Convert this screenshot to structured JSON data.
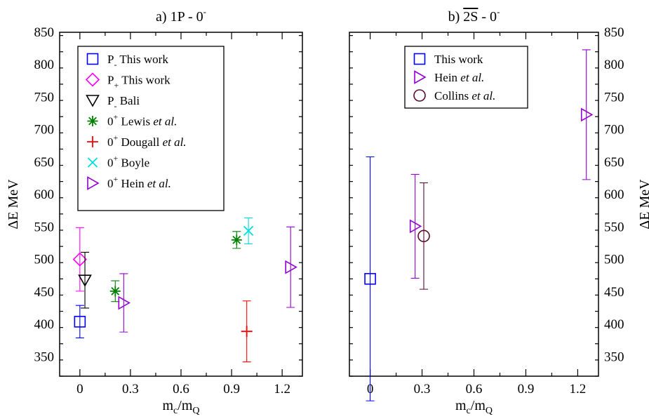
{
  "chart_data": [
    {
      "type": "scatter",
      "title": "a) 1P - 0",
      "title_sup": "-",
      "xlabel": {
        "base": "m",
        "sub1": "c",
        "mid": "/m",
        "sub2": "Q"
      },
      "ylabel": "ΔE MeV",
      "xlim": [
        -0.12,
        1.32
      ],
      "ylim": [
        320,
        850
      ],
      "xticks": [
        0,
        0.3,
        0.6,
        0.9,
        1.2
      ],
      "xtick_labels": [
        "0",
        "0.3",
        "0.6",
        "0.9",
        "1.2"
      ],
      "yticks": [
        350,
        400,
        450,
        500,
        550,
        600,
        650,
        700,
        750,
        800,
        850
      ],
      "ytick_labels": [
        "350",
        "400",
        "450",
        "500",
        "550",
        "600",
        "650",
        "700",
        "750",
        "800",
        "850"
      ],
      "y_axis_side": "left",
      "legend_position": "top-left",
      "series": [
        {
          "key": "a-pm",
          "legend": {
            "prefix": "P",
            "sup": "",
            "sub": "-",
            "plain": " This work",
            "italic": ""
          },
          "marker": "square",
          "color": "#0000ff",
          "points": [
            {
              "x": 0.0,
              "y": 404,
              "err": 25
            }
          ]
        },
        {
          "key": "a-pp",
          "legend": {
            "prefix": "P",
            "sup": "",
            "sub": "+",
            "plain": " This work",
            "italic": ""
          },
          "marker": "diamond",
          "color": "#ff00ff",
          "points": [
            {
              "x": 0.0,
              "y": 500,
              "err": 49
            }
          ]
        },
        {
          "key": "a-bali",
          "legend": {
            "prefix": "P",
            "sup": "",
            "sub": "-",
            "plain": " Bali",
            "italic": ""
          },
          "marker": "triangle-down",
          "color": "#000000",
          "points": [
            {
              "x": 0.03,
              "y": 468,
              "err": 43
            }
          ]
        },
        {
          "key": "a-lewis",
          "legend": {
            "prefix": "0",
            "sup": "+",
            "sub": "",
            "plain": " Lewis ",
            "italic": "et al."
          },
          "marker": "asterisk",
          "color": "#008000",
          "points": [
            {
              "x": 0.21,
              "y": 451,
              "err": 16
            },
            {
              "x": 0.93,
              "y": 530,
              "err": 13
            }
          ]
        },
        {
          "key": "a-dougall",
          "legend": {
            "prefix": "0",
            "sup": "+",
            "sub": "",
            "plain": " Dougall ",
            "italic": "et al."
          },
          "marker": "plus",
          "color": "#ff0000",
          "points": [
            {
              "x": 0.99,
              "y": 389,
              "err": 47
            }
          ]
        },
        {
          "key": "a-boyle",
          "legend": {
            "prefix": "0",
            "sup": "+",
            "sub": "",
            "plain": " Boyle",
            "italic": ""
          },
          "marker": "cross",
          "color": "#00dddd",
          "points": [
            {
              "x": 1.0,
              "y": 544,
              "err": 20
            }
          ]
        },
        {
          "key": "a-hein",
          "legend": {
            "prefix": "0",
            "sup": "+",
            "sub": "",
            "plain": " Hein ",
            "italic": "et al."
          },
          "marker": "triangle-right",
          "color": "#9400d3",
          "points": [
            {
              "x": 0.26,
              "y": 433,
              "err": 45
            },
            {
              "x": 1.25,
              "y": 488,
              "err": 62
            }
          ]
        }
      ]
    },
    {
      "type": "scatter",
      "title": "b) 2S - 0",
      "title_overline": "2S",
      "title_sup": "-",
      "xlabel": {
        "base": "m",
        "sub1": "c",
        "mid": "/m",
        "sub2": "Q"
      },
      "ylabel": "ΔE MeV",
      "xlim": [
        -0.12,
        1.32
      ],
      "ylim": [
        320,
        850
      ],
      "xticks": [
        0,
        0.3,
        0.6,
        0.9,
        1.2
      ],
      "xtick_labels": [
        "0",
        "0.3",
        "0.6",
        "0.9",
        "1.2"
      ],
      "yticks": [
        350,
        400,
        450,
        500,
        550,
        600,
        650,
        700,
        750,
        800,
        850
      ],
      "ytick_labels": [
        "350",
        "400",
        "450",
        "500",
        "550",
        "600",
        "650",
        "700",
        "750",
        "800",
        "850"
      ],
      "y_axis_side": "right",
      "legend_position": "top-center",
      "series": [
        {
          "key": "b-this",
          "legend": {
            "prefix": "",
            "sup": "",
            "sub": "",
            "plain": "This work",
            "italic": ""
          },
          "marker": "square",
          "color": "#0000ff",
          "points": [
            {
              "x": 0.0,
              "y": 470,
              "err": 188
            }
          ]
        },
        {
          "key": "b-hein",
          "legend": {
            "prefix": "",
            "sup": "",
            "sub": "",
            "plain": "Hein ",
            "italic": "et al."
          },
          "marker": "triangle-right",
          "color": "#9400d3",
          "points": [
            {
              "x": 0.26,
              "y": 551,
              "err": 80
            },
            {
              "x": 1.25,
              "y": 723,
              "err": 100
            }
          ]
        },
        {
          "key": "b-collins",
          "legend": {
            "prefix": "",
            "sup": "",
            "sub": "",
            "plain": "Collins ",
            "italic": "et al."
          },
          "marker": "circle",
          "color": "#5a0a2d",
          "points": [
            {
              "x": 0.31,
              "y": 536,
              "err": 82
            }
          ]
        }
      ]
    }
  ]
}
